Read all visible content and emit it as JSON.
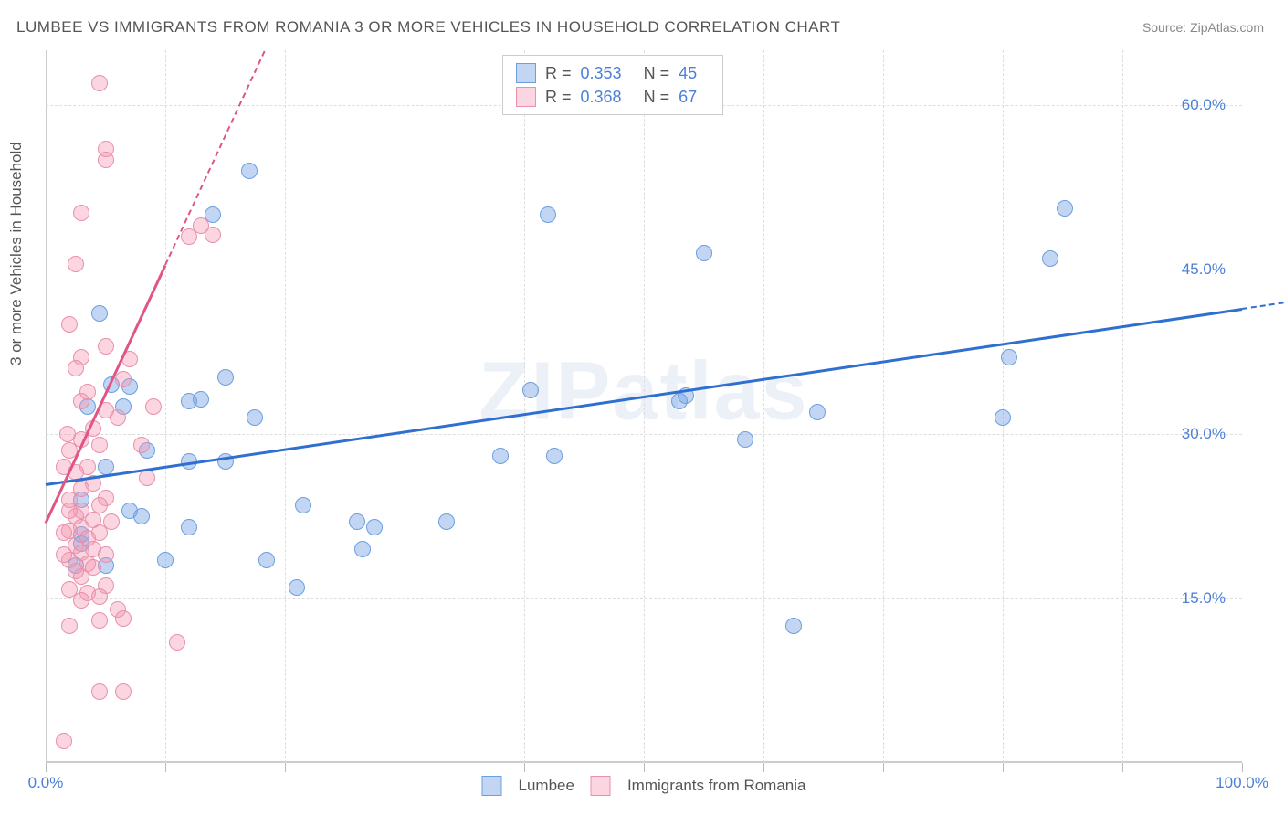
{
  "title": "LUMBEE VS IMMIGRANTS FROM ROMANIA 3 OR MORE VEHICLES IN HOUSEHOLD CORRELATION CHART",
  "source": "Source: ZipAtlas.com",
  "watermark": "ZIPatlas",
  "y_axis_label": "3 or more Vehicles in Household",
  "chart": {
    "type": "scatter",
    "xlim": [
      0,
      100
    ],
    "ylim": [
      0,
      65
    ],
    "x_ticks_visible": [
      "0.0%",
      "100.0%"
    ],
    "y_ticks": [
      {
        "val": 15,
        "label": "15.0%"
      },
      {
        "val": 30,
        "label": "30.0%"
      },
      {
        "val": 45,
        "label": "45.0%"
      },
      {
        "val": 60,
        "label": "60.0%"
      }
    ],
    "x_tick_positions": [
      0,
      10,
      20,
      30,
      40,
      50,
      60,
      70,
      80,
      90,
      100
    ],
    "grid_color": "#dddddd",
    "axis_color": "#cccccc",
    "background": "#ffffff",
    "point_radius": 9,
    "series": [
      {
        "name": "Lumbee",
        "fill": "rgba(120,165,230,0.45)",
        "stroke": "#6b9fe0",
        "line_color": "#2f6fd0",
        "r": "0.353",
        "n": "45",
        "trend": {
          "x1": 0,
          "y1": 25.5,
          "x2": 100,
          "y2": 41.5,
          "dash_to_y": 65
        },
        "points": [
          [
            17,
            54
          ],
          [
            14,
            50
          ],
          [
            42,
            50
          ],
          [
            4.5,
            41
          ],
          [
            5.5,
            34.5
          ],
          [
            15,
            35.2
          ],
          [
            6.5,
            32.5
          ],
          [
            12,
            33
          ],
          [
            13,
            33.2
          ],
          [
            7,
            34.3
          ],
          [
            40.5,
            34
          ],
          [
            53.5,
            33.5
          ],
          [
            53,
            33
          ],
          [
            58.5,
            29.5
          ],
          [
            42.5,
            28
          ],
          [
            17.5,
            31.5
          ],
          [
            8.5,
            28.5
          ],
          [
            12,
            27.5
          ],
          [
            15,
            27.5
          ],
          [
            7,
            23
          ],
          [
            12,
            21.5
          ],
          [
            8,
            22.5
          ],
          [
            3,
            20
          ],
          [
            10,
            18.5
          ],
          [
            21.5,
            23.5
          ],
          [
            26,
            22
          ],
          [
            27.5,
            21.5
          ],
          [
            18.5,
            18.5
          ],
          [
            33.5,
            22
          ],
          [
            26.5,
            19.5
          ],
          [
            21,
            16
          ],
          [
            38,
            28
          ],
          [
            5,
            18
          ],
          [
            55,
            46.5
          ],
          [
            64.5,
            32
          ],
          [
            84,
            46
          ],
          [
            80.5,
            37
          ],
          [
            85.2,
            50.6
          ],
          [
            80,
            31.5
          ],
          [
            62.5,
            12.5
          ],
          [
            5,
            27
          ],
          [
            3,
            20.8
          ],
          [
            3,
            24
          ],
          [
            3.5,
            32.5
          ],
          [
            2.5,
            18
          ]
        ]
      },
      {
        "name": "Immigrants from Romania",
        "fill": "rgba(245,150,175,0.4)",
        "stroke": "#e890ad",
        "line_color": "#e05585",
        "r": "0.368",
        "n": "67",
        "trend": {
          "x1": 0,
          "y1": 22,
          "x2": 10,
          "y2": 45.5,
          "dash_to_y": 65
        },
        "points": [
          [
            4.5,
            62
          ],
          [
            5,
            56
          ],
          [
            5,
            55
          ],
          [
            3,
            50.2
          ],
          [
            2.5,
            45.5
          ],
          [
            13,
            49
          ],
          [
            12,
            48
          ],
          [
            14,
            48.2
          ],
          [
            7,
            36.8
          ],
          [
            5,
            38
          ],
          [
            6.5,
            35
          ],
          [
            3,
            37
          ],
          [
            2.5,
            36
          ],
          [
            3,
            33
          ],
          [
            3.5,
            33.8
          ],
          [
            5,
            32.2
          ],
          [
            6,
            31.5
          ],
          [
            4,
            30.5
          ],
          [
            4.5,
            29
          ],
          [
            3,
            29.5
          ],
          [
            2,
            28.5
          ],
          [
            3.5,
            27
          ],
          [
            2.5,
            26.5
          ],
          [
            4,
            25.5
          ],
          [
            3,
            25
          ],
          [
            5,
            24.2
          ],
          [
            2,
            24
          ],
          [
            4.5,
            23.5
          ],
          [
            3,
            23
          ],
          [
            2.5,
            22.5
          ],
          [
            4,
            22.2
          ],
          [
            5.5,
            22
          ],
          [
            3,
            21.5
          ],
          [
            2,
            21.2
          ],
          [
            4.5,
            21
          ],
          [
            3.5,
            20.5
          ],
          [
            2.5,
            19.8
          ],
          [
            4,
            19.5
          ],
          [
            3,
            19.2
          ],
          [
            5,
            19
          ],
          [
            2,
            18.5
          ],
          [
            3.5,
            18.2
          ],
          [
            4,
            17.8
          ],
          [
            2.5,
            17.5
          ],
          [
            3,
            17
          ],
          [
            5,
            16.2
          ],
          [
            2,
            15.8
          ],
          [
            3.5,
            15.5
          ],
          [
            4.5,
            15.2
          ],
          [
            3,
            14.8
          ],
          [
            6,
            14
          ],
          [
            6.5,
            13.2
          ],
          [
            4.5,
            13
          ],
          [
            2,
            12.5
          ],
          [
            4.5,
            6.5
          ],
          [
            6.5,
            6.5
          ],
          [
            1.5,
            2
          ],
          [
            11,
            11
          ],
          [
            8.5,
            26
          ],
          [
            8,
            29
          ],
          [
            9,
            32.5
          ],
          [
            2,
            23
          ],
          [
            1.5,
            21
          ],
          [
            1.5,
            19
          ],
          [
            1.8,
            30
          ],
          [
            1.5,
            27
          ],
          [
            2,
            40
          ]
        ]
      }
    ]
  },
  "legend_top": {
    "rows": [
      {
        "swatch_fill": "rgba(120,165,230,0.45)",
        "swatch_border": "#6b9fe0",
        "r_label": "R =",
        "r_val": "0.353",
        "n_label": "N =",
        "n_val": "45"
      },
      {
        "swatch_fill": "rgba(245,150,175,0.4)",
        "swatch_border": "#e890ad",
        "r_label": "R =",
        "r_val": "0.368",
        "n_label": "N =",
        "n_val": "67"
      }
    ]
  },
  "legend_bottom": [
    {
      "swatch_fill": "rgba(120,165,230,0.45)",
      "swatch_border": "#6b9fe0",
      "label": "Lumbee"
    },
    {
      "swatch_fill": "rgba(245,150,175,0.4)",
      "swatch_border": "#e890ad",
      "label": "Immigrants from Romania"
    }
  ]
}
